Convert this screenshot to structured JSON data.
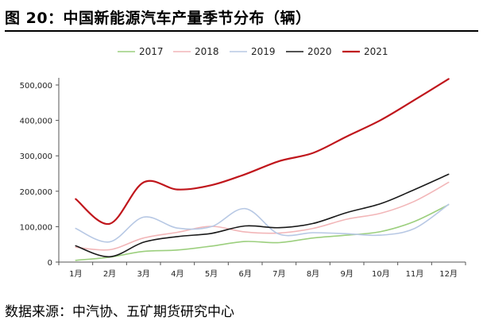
{
  "title": "图 20：中国新能源汽车产量季节分布（辆）",
  "source": "数据来源：中汽协、五矿期货研究中心",
  "chart_data": {
    "type": "line",
    "title": "图 20：中国新能源汽车产量季节分布（辆）",
    "xlabel": "",
    "ylabel": "",
    "categories": [
      "1月",
      "2月",
      "3月",
      "4月",
      "5月",
      "6月",
      "7月",
      "8月",
      "9月",
      "10月",
      "11月",
      "12月"
    ],
    "ylim": [
      0,
      500000
    ],
    "yticks": [
      0,
      100000,
      200000,
      300000,
      400000,
      500000
    ],
    "ytick_labels": [
      "0",
      "100,000",
      "200,000",
      "300,000",
      "400,000",
      "500,000"
    ],
    "grid": false,
    "legend_position": "top",
    "series": [
      {
        "name": "2017",
        "color": "#9ccf7e",
        "values": [
          5000,
          14000,
          30000,
          34000,
          45000,
          58000,
          55000,
          68000,
          76000,
          86000,
          115000,
          162000
        ]
      },
      {
        "name": "2018",
        "color": "#f2b6b8",
        "values": [
          42000,
          35000,
          68000,
          84000,
          101000,
          85000,
          82000,
          95000,
          121000,
          138000,
          172000,
          225000
        ]
      },
      {
        "name": "2019",
        "color": "#b7c8e4",
        "values": [
          95000,
          57000,
          127000,
          96000,
          100000,
          151000,
          79000,
          83000,
          80000,
          76000,
          95000,
          163000
        ]
      },
      {
        "name": "2020",
        "color": "#1a1a1a",
        "values": [
          46000,
          15000,
          56000,
          72000,
          81000,
          102000,
          97000,
          109000,
          140000,
          165000,
          205000,
          248000
        ]
      },
      {
        "name": "2021",
        "color": "#c0161c",
        "values": [
          178000,
          108000,
          225000,
          205000,
          217000,
          248000,
          285000,
          308000,
          355000,
          401000,
          458000,
          517000
        ]
      }
    ]
  }
}
